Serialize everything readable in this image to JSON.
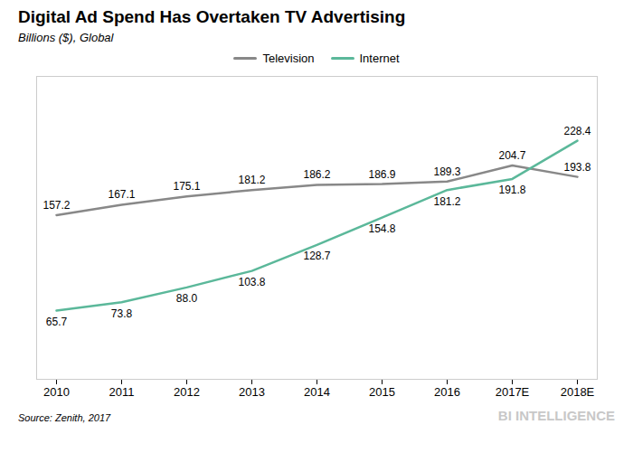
{
  "chart_data": {
    "type": "line",
    "title": "Digital Ad Spend Has Overtaken TV Advertising",
    "subtitle": "Billions ($), Global",
    "categories": [
      "2010",
      "2011",
      "2012",
      "2013",
      "2014",
      "2015",
      "2016",
      "2017E",
      "2018E"
    ],
    "series": [
      {
        "name": "Television",
        "color": "#888888",
        "values": [
          157.2,
          167.1,
          175.1,
          181.2,
          186.2,
          186.9,
          189.3,
          204.7,
          193.8
        ]
      },
      {
        "name": "Internet",
        "color": "#5bb89a",
        "values": [
          65.7,
          73.8,
          88.0,
          103.8,
          128.7,
          154.8,
          181.2,
          191.8,
          228.4
        ],
        "value_labels": [
          "65.7",
          "73.8",
          "88.0",
          "103.8",
          "128.7",
          "154.8",
          "181.2",
          "191.8",
          "228.4"
        ]
      }
    ],
    "ylim": [
      0,
      290
    ],
    "tick_labels": "x",
    "grid": false,
    "legend": "top",
    "data_labels": true,
    "annotations": [
      "Source: Zenith, 2017",
      "BI INTELLIGENCE"
    ]
  }
}
